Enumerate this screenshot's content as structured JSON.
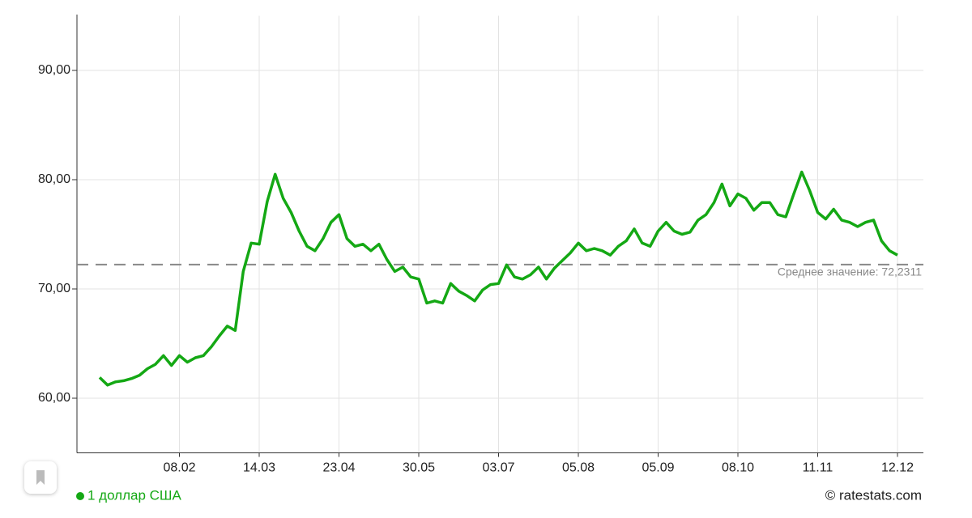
{
  "chart_data": {
    "type": "line",
    "categories": [
      null,
      null,
      null,
      null,
      null,
      null,
      null,
      null,
      null,
      null,
      "08.02",
      null,
      null,
      null,
      null,
      null,
      null,
      null,
      null,
      null,
      "14.03",
      null,
      null,
      null,
      null,
      null,
      null,
      null,
      null,
      null,
      "23.04",
      null,
      null,
      null,
      null,
      null,
      null,
      null,
      null,
      null,
      "30.05",
      null,
      null,
      null,
      null,
      null,
      null,
      null,
      null,
      null,
      "03.07",
      null,
      null,
      null,
      null,
      null,
      null,
      null,
      null,
      null,
      "05.08",
      null,
      null,
      null,
      null,
      null,
      null,
      null,
      null,
      null,
      "05.09",
      null,
      null,
      null,
      null,
      null,
      null,
      null,
      null,
      null,
      "08.10",
      null,
      null,
      null,
      null,
      null,
      null,
      null,
      null,
      null,
      "11.11",
      null,
      null,
      null,
      null,
      null,
      null,
      null,
      null,
      null,
      "12.12"
    ],
    "series": [
      {
        "name": "1 доллар США",
        "color": "#14a814",
        "values": [
          61.9,
          61.2,
          61.5,
          61.6,
          61.8,
          62.1,
          62.7,
          63.1,
          63.9,
          63.0,
          63.9,
          63.3,
          63.7,
          63.9,
          64.7,
          65.7,
          66.6,
          66.2,
          71.6,
          74.2,
          74.1,
          78.0,
          80.5,
          78.3,
          77.0,
          75.3,
          73.9,
          73.5,
          74.6,
          76.1,
          76.8,
          74.6,
          73.9,
          74.1,
          73.5,
          74.1,
          72.7,
          71.6,
          72.0,
          71.1,
          70.9,
          68.7,
          68.9,
          68.7,
          70.5,
          69.8,
          69.4,
          68.9,
          69.9,
          70.4,
          70.5,
          72.2,
          71.1,
          70.9,
          71.3,
          72.0,
          70.9,
          71.9,
          72.6,
          73.3,
          74.2,
          73.5,
          73.7,
          73.5,
          73.1,
          73.9,
          74.4,
          75.5,
          74.2,
          73.9,
          75.3,
          76.1,
          75.3,
          75.0,
          75.2,
          76.3,
          76.8,
          77.9,
          79.6,
          77.6,
          78.7,
          78.3,
          77.2,
          77.9,
          77.9,
          76.8,
          76.6,
          78.7,
          80.7,
          79.0,
          77.0,
          76.4,
          77.3,
          76.3,
          76.1,
          75.7,
          76.1,
          76.3,
          74.4,
          73.5,
          73.1
        ]
      }
    ],
    "ylim": [
      55,
      95
    ],
    "yticks": [
      {
        "value": 60,
        "label": "60,00"
      },
      {
        "value": 70,
        "label": "70,00"
      },
      {
        "value": 80,
        "label": "80,00"
      },
      {
        "value": 90,
        "label": "90,00"
      }
    ],
    "grid": true,
    "mean": 72.2311,
    "mean_label": "Среднее значение: 72,2311",
    "source": "© ratestats.com"
  }
}
